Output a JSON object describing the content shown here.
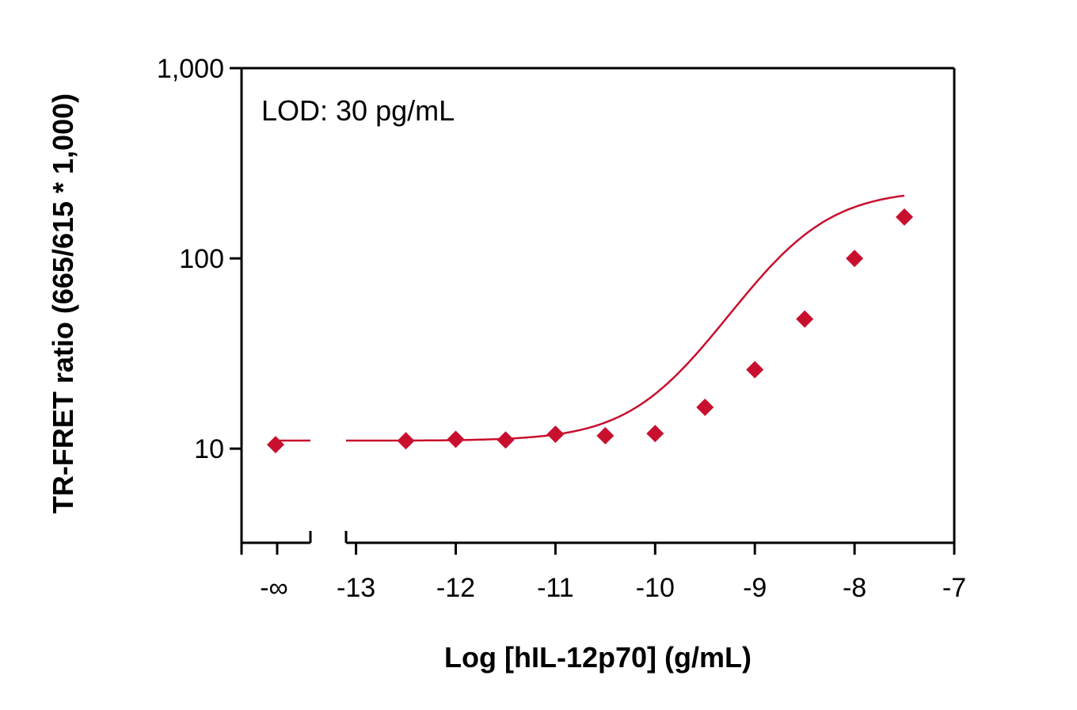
{
  "chart_data": {
    "type": "scatter",
    "xlabel": "Log [hIL-12p70] (g/mL)",
    "ylabel": "TR-FRET ratio (665/615 * 1,000)",
    "annotation": "LOD: 30 pg/mL",
    "y_scale": "log",
    "ylim": [
      3.2,
      1000
    ],
    "xlim": [
      -13.1,
      -7
    ],
    "y_ticks": [
      {
        "value": 1000,
        "label": "1,000"
      },
      {
        "value": 100,
        "label": "100"
      },
      {
        "value": 10,
        "label": "10"
      }
    ],
    "x_ticks": [
      {
        "value": -13,
        "label": "-13"
      },
      {
        "value": -12,
        "label": "-12"
      },
      {
        "value": -11,
        "label": "-11"
      },
      {
        "value": -10,
        "label": "-10"
      },
      {
        "value": -9,
        "label": "-9"
      },
      {
        "value": -8,
        "label": "-8"
      },
      {
        "value": -7,
        "label": "-7"
      }
    ],
    "x_break": {
      "label": "-∞",
      "point": {
        "x": "-∞",
        "y": 10.5
      }
    },
    "series": [
      {
        "color": "#C8102E",
        "points": [
          {
            "x": -12.5,
            "y": 11.0
          },
          {
            "x": -12.0,
            "y": 11.2
          },
          {
            "x": -11.5,
            "y": 11.1
          },
          {
            "x": -11.0,
            "y": 11.9
          },
          {
            "x": -10.5,
            "y": 11.7
          },
          {
            "x": -10.0,
            "y": 12.0
          },
          {
            "x": -9.5,
            "y": 16.5
          },
          {
            "x": -9.0,
            "y": 26.0
          },
          {
            "x": -8.5,
            "y": 48.0
          },
          {
            "x": -8.0,
            "y": 100.0
          },
          {
            "x": -7.5,
            "y": 165.0
          }
        ]
      }
    ]
  }
}
